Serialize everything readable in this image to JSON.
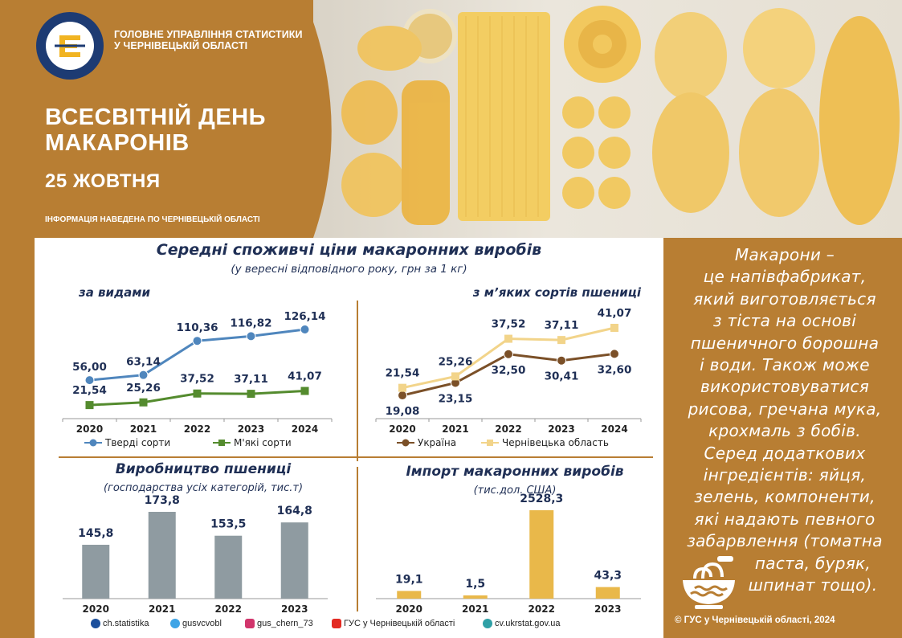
{
  "header": {
    "org_line1": "ГОЛОВНЕ УПРАВЛІННЯ СТАТИСТИКИ",
    "org_line2": "У ЧЕРНІВЕЦЬКІЙ ОБЛАСТІ",
    "logo_text": "ДЕРЖСТАТ УКРАЇНИ",
    "title_line1": "ВСЕСВІТНІЙ ДЕНЬ",
    "title_line2": "МАКАРОНІВ",
    "date": "25 ЖОВТНЯ",
    "note": "ІНФОРМАЦІЯ НАВЕДЕНА ПО ЧЕРНІВЕЦЬКІЙ ОБЛАСТІ"
  },
  "prices": {
    "title": "Середні споживчі ціни макаронних виробів",
    "subtitle": "(у вересні відповідного року, грн за 1 кг)"
  },
  "chart_data": [
    {
      "type": "line",
      "title": "за видами",
      "x": [
        "2020",
        "2021",
        "2022",
        "2023",
        "2024"
      ],
      "series": [
        {
          "name": "Тверді сорти",
          "values": [
            56.0,
            63.14,
            110.36,
            116.82,
            126.14
          ],
          "labels": [
            "56,00",
            "63,14",
            "110,36",
            "116,82",
            "126,14"
          ],
          "color": "#4f86bd",
          "marker": "circle"
        },
        {
          "name": "М'які сорти",
          "values": [
            21.54,
            25.26,
            37.52,
            37.11,
            41.07
          ],
          "labels": [
            "21,54",
            "25,26",
            "37,52",
            "37,11",
            "41,07"
          ],
          "color": "#548b2e",
          "marker": "square"
        }
      ]
    },
    {
      "type": "line",
      "title": "з м’яких сортів пшениці",
      "x": [
        "2020",
        "2021",
        "2022",
        "2023",
        "2024"
      ],
      "series": [
        {
          "name": "Україна",
          "values": [
            19.08,
            23.15,
            32.5,
            30.41,
            32.6
          ],
          "labels": [
            "19,08",
            "23,15",
            "32,50",
            "30,41",
            "32,60"
          ],
          "color": "#7b5028",
          "marker": "circle"
        },
        {
          "name": "Чернівецька область",
          "values": [
            21.54,
            25.26,
            37.52,
            37.11,
            41.07
          ],
          "labels": [
            "21,54",
            "25,26",
            "37,52",
            "37,11",
            "41,07"
          ],
          "color": "#f2d48a",
          "marker": "square"
        }
      ]
    },
    {
      "type": "bar",
      "title": "Виробництво пшениці",
      "subtitle": "(господарства усіх категорій, тис.т)",
      "categories": [
        "2020",
        "2021",
        "2022",
        "2023"
      ],
      "values": [
        145.8,
        173.8,
        153.5,
        164.8
      ],
      "labels": [
        "145,8",
        "173,8",
        "153,5",
        "164,8"
      ],
      "color": "#8f9ba1"
    },
    {
      "type": "bar",
      "title": "Імпорт макаронних виробів",
      "subtitle": "(тис.дол. США)",
      "categories": [
        "2020",
        "2021",
        "2022",
        "2023"
      ],
      "values": [
        19.1,
        1.5,
        2528.3,
        43.3
      ],
      "labels": [
        "19,1",
        "1,5",
        "2528,3",
        "43,3"
      ],
      "color": "#e9b84a"
    }
  ],
  "side": {
    "lines": [
      "Макарони –",
      "це напівфабрикат,",
      "який виготовляється",
      "з тіста на основі",
      "пшеничного борошна",
      "і води. Також може",
      "використовуватися",
      "рисова, гречана мука,",
      "крохмаль з бобів.",
      "Серед додаткових",
      "інгредієнтів: яйця,",
      "зелень, компоненти,",
      "які надають певного",
      "забарвлення (томатна",
      "паста, буряк,",
      "шпинат тощо)."
    ],
    "copyright": "© ГУС у Чернівецькій області, 2024"
  },
  "footer": {
    "facebook": "ch.statistika",
    "twitter": "gusvcvobl",
    "instagram": "gus_chern_73",
    "youtube": "ГУС у Чернівецькій області",
    "web": "cv.ukrstat.gov.ua"
  }
}
